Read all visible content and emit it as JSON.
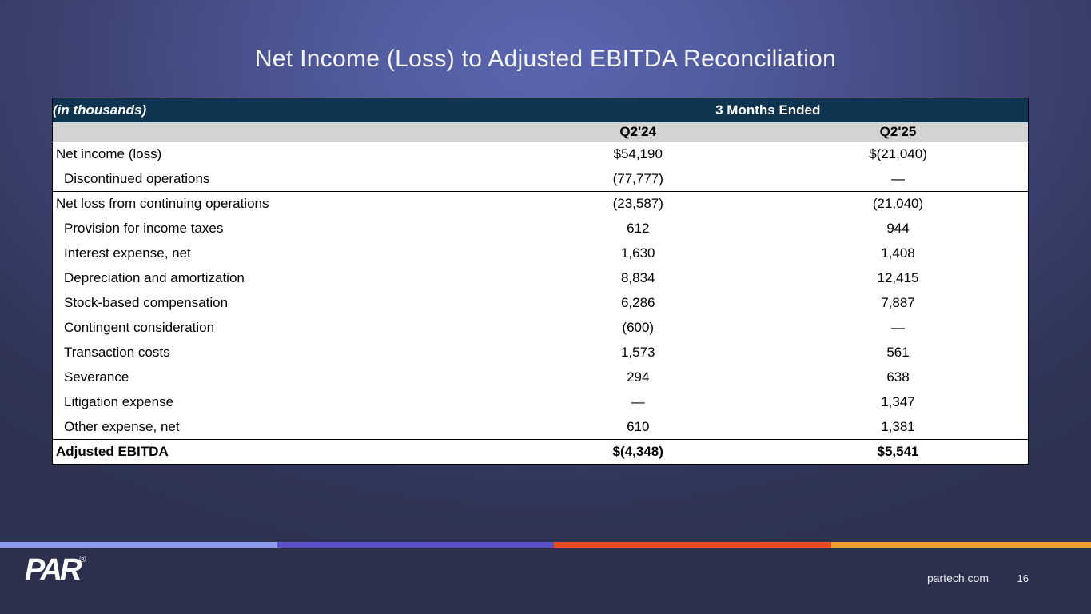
{
  "slide": {
    "title": "Net Income (Loss) to Adjusted EBITDA Reconciliation",
    "footer": {
      "logo_text": "PAR",
      "logo_registered_mark": "®",
      "website": "partech.com",
      "page_number": "16"
    }
  },
  "table": {
    "unit_label": "(in thousands)",
    "period_header": "3 Months Ended",
    "columns": [
      "Q2'24",
      "Q2'25"
    ],
    "rows": [
      {
        "label": "Net income (loss)",
        "q224": "$54,190",
        "q225": "$(21,040)"
      },
      {
        "label": "Discontinued operations",
        "q224": "(77,777)",
        "q225": "—"
      },
      {
        "label": "Net loss from continuing operations",
        "q224": "(23,587)",
        "q225": "(21,040)"
      },
      {
        "label": "Provision for income taxes",
        "q224": "612",
        "q225": "944"
      },
      {
        "label": "Interest expense, net",
        "q224": "1,630",
        "q225": "1,408"
      },
      {
        "label": "Depreciation and amortization",
        "q224": "8,834",
        "q225": "12,415"
      },
      {
        "label": "Stock-based compensation",
        "q224": "6,286",
        "q225": "7,887"
      },
      {
        "label": "Contingent consideration",
        "q224": "(600)",
        "q225": "—"
      },
      {
        "label": "Transaction costs",
        "q224": "1,573",
        "q225": "561"
      },
      {
        "label": "Severance",
        "q224": "294",
        "q225": "638"
      },
      {
        "label": "Litigation expense",
        "q224": "—",
        "q225": "1,347"
      },
      {
        "label": "Other expense, net",
        "q224": "610",
        "q225": "1,381"
      }
    ],
    "total_row": {
      "label": "Adjusted EBITDA",
      "q224": "$(4,348)",
      "q225": "$5,541"
    }
  },
  "colors": {
    "header_bg": "#0e3450",
    "subheader_bg": "#d3d3d3",
    "footer_bg": "#2c304d",
    "stripe": [
      "#8e9cf0",
      "#5a50c8",
      "#f04a21",
      "#efa02c"
    ]
  }
}
